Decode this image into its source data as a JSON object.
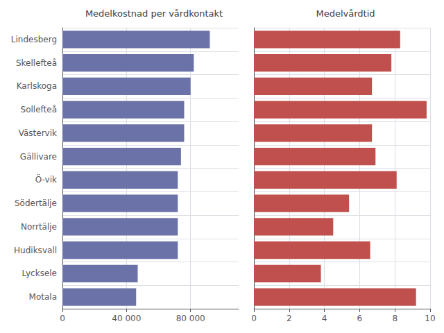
{
  "chart_data": [
    {
      "type": "bar",
      "orientation": "horizontal",
      "title": "Medelkostnad per vårdkontakt",
      "categories": [
        "Lindesberg",
        "Skellefteå",
        "Karlskoga",
        "Sollefteå",
        "Västervik",
        "Gällivare",
        "Ö-vik",
        "Södertälje",
        "Norrtälje",
        "Hudiksvall",
        "Lycksele",
        "Motala"
      ],
      "values": [
        92000,
        82000,
        80000,
        76000,
        76000,
        74000,
        72000,
        72000,
        72000,
        72000,
        47000,
        46000
      ],
      "color": "#6B72A8",
      "xlim": [
        0,
        110000
      ],
      "xticks": [
        0,
        {
          "value": 40000,
          "label": "40 000"
        },
        {
          "value": 80000,
          "label": "80 000"
        }
      ],
      "grid": true
    },
    {
      "type": "bar",
      "orientation": "horizontal",
      "title": "Medelvårdtid",
      "categories": [
        "Lindesberg",
        "Skellefteå",
        "Karlskoga",
        "Sollefteå",
        "Västervik",
        "Gällivare",
        "Ö-vik",
        "Södertälje",
        "Norrtälje",
        "Hudiksvall",
        "Lycksele",
        "Motala"
      ],
      "values": [
        8.3,
        7.8,
        6.7,
        9.8,
        6.7,
        6.9,
        8.1,
        5.4,
        4.5,
        6.6,
        3.8,
        9.2
      ],
      "color": "#C0504D",
      "xlim": [
        0,
        10
      ],
      "xticks": [
        0,
        2,
        4,
        6,
        8,
        10
      ],
      "grid": true,
      "tick_labels": "x"
    }
  ]
}
